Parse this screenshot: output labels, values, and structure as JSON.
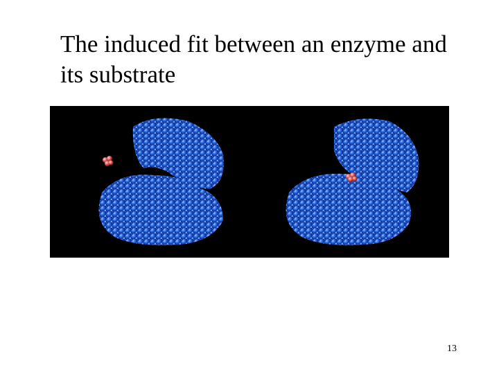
{
  "slide": {
    "title": "The induced fit between an enzyme and its substrate",
    "page_number": "13"
  }
}
